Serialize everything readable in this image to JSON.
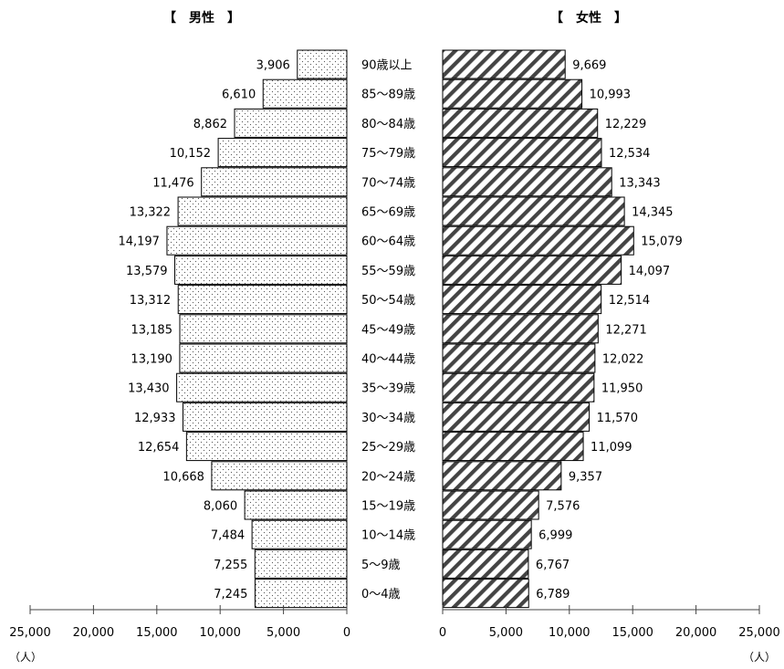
{
  "chart_data": {
    "type": "bar",
    "subtype": "population-pyramid",
    "left_title": "【　男性　】",
    "right_title": "【　女性　】",
    "categories": [
      "90歳以上",
      "85～89歳",
      "80～84歳",
      "75～79歳",
      "70～74歳",
      "65～69歳",
      "60～64歳",
      "55～59歳",
      "50～54歳",
      "45～49歳",
      "40～44歳",
      "35～39歳",
      "30～34歳",
      "25～29歳",
      "20～24歳",
      "15～19歳",
      "10～14歳",
      "5～9歳",
      "0～4歳"
    ],
    "series": [
      {
        "name": "男性",
        "values": [
          3906,
          6610,
          8862,
          10152,
          11476,
          13322,
          14197,
          13579,
          13312,
          13185,
          13190,
          13430,
          12933,
          12654,
          10668,
          8060,
          7484,
          7255,
          7245
        ],
        "labels": [
          "3,906",
          "6,610",
          "8,862",
          "10,152",
          "11,476",
          "13,322",
          "14,197",
          "13,579",
          "13,312",
          "13,185",
          "13,190",
          "13,430",
          "12,933",
          "12,654",
          "10,668",
          "8,060",
          "7,484",
          "7,255",
          "7,245"
        ],
        "pattern": "dots"
      },
      {
        "name": "女性",
        "values": [
          9669,
          10993,
          12229,
          12534,
          13343,
          14345,
          15079,
          14097,
          12514,
          12271,
          12022,
          11950,
          11570,
          11099,
          9357,
          7576,
          6999,
          6767,
          6789
        ],
        "labels": [
          "9,669",
          "10,993",
          "12,229",
          "12,534",
          "13,343",
          "14,345",
          "15,079",
          "14,097",
          "12,514",
          "12,271",
          "12,022",
          "11,950",
          "11,570",
          "11,099",
          "9,357",
          "7,576",
          "6,999",
          "6,767",
          "6,789"
        ],
        "pattern": "diagonal-stripes"
      }
    ],
    "xlim": [
      0,
      25000
    ],
    "xticks": [
      0,
      5000,
      10000,
      15000,
      20000,
      25000
    ],
    "left_tick_labels": [
      "25,000",
      "20,000",
      "15,000",
      "10,000",
      "5,000",
      "0"
    ],
    "right_tick_labels": [
      "0",
      "5,000",
      "10,000",
      "15,000",
      "20,000",
      "25,000"
    ],
    "unit": "（人）",
    "grid": false,
    "colors": {
      "bar_stroke": "#000000",
      "dot_pattern": "#555555",
      "stripe_pattern": "#444444",
      "axis": "#444444"
    }
  }
}
